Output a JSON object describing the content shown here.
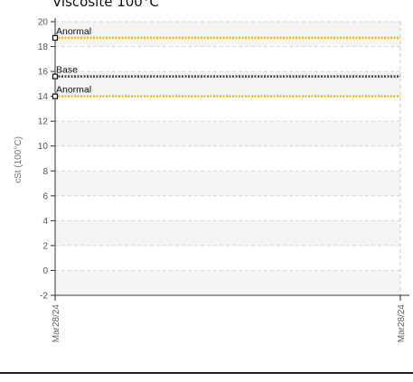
{
  "chart_data": {
    "type": "line",
    "title": "Viscosite 100°C",
    "ylabel": "cSt (100°C)",
    "xlabel": "",
    "ylim": [
      -2,
      20
    ],
    "yticks": [
      -2,
      0,
      2,
      4,
      6,
      8,
      10,
      12,
      14,
      16,
      18,
      20
    ],
    "x": [
      "Mar28/24",
      "Mar28/24"
    ],
    "grid": true,
    "series": [
      {
        "name": "Anormal",
        "values": [
          18.7,
          18.7
        ],
        "color": "#e8c200",
        "style": "dotted"
      },
      {
        "name": "Base",
        "values": [
          15.6,
          15.6
        ],
        "color": "#444444",
        "style": "dotted"
      },
      {
        "name": "Anormal",
        "values": [
          14.0,
          14.0
        ],
        "color": "#e8c200",
        "style": "dotted"
      }
    ]
  }
}
